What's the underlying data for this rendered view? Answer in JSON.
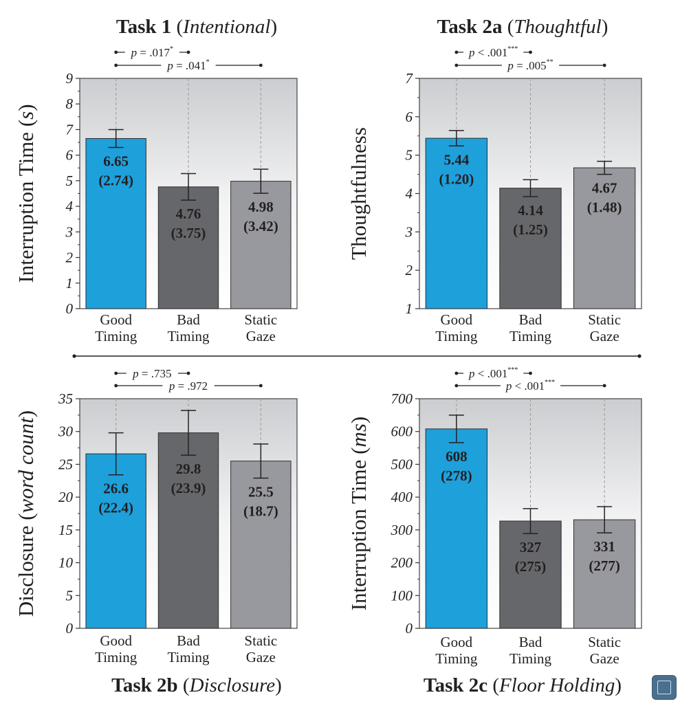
{
  "colors": {
    "good_timing": "#1ea0db",
    "bad_timing": "#66676b",
    "static_gaze": "#98999e",
    "text": "#231f20"
  },
  "icons": {
    "fullscreen": "fullscreen-icon"
  },
  "chart_data": [
    {
      "type": "bar",
      "title": "Task 1",
      "title_italic": "Intentional",
      "ylabel": "Interruption Time",
      "ylabel_italic": "s",
      "ylim": [
        0,
        9
      ],
      "yticks": [
        "0",
        "1",
        "2",
        "3",
        "4",
        "5",
        "6",
        "7",
        "8",
        "9"
      ],
      "categories": [
        [
          "Good",
          "Timing"
        ],
        [
          "Bad",
          "Timing"
        ],
        [
          "Static",
          "Gaze"
        ]
      ],
      "values": [
        6.65,
        4.76,
        4.98
      ],
      "err": [
        0.35,
        0.52,
        0.47
      ],
      "value_labels": [
        "6.65",
        "4.76",
        "4.98"
      ],
      "sd_labels": [
        "(2.74)",
        "(3.75)",
        "(3.42)"
      ],
      "sig": [
        {
          "text": "p = .017",
          "stars": "*",
          "from": 0,
          "to": 1
        },
        {
          "text": "p = .041",
          "stars": "*",
          "from": 0,
          "to": 2
        }
      ]
    },
    {
      "type": "bar",
      "title": "Task 2a",
      "title_italic": "Thoughtful",
      "ylabel": "Thoughtfulness",
      "ylabel_italic": "",
      "ylim": [
        1,
        7
      ],
      "yticks": [
        "1",
        "2",
        "3",
        "4",
        "5",
        "6",
        "7"
      ],
      "categories": [
        [
          "Good",
          "Timing"
        ],
        [
          "Bad",
          "Timing"
        ],
        [
          "Static",
          "Gaze"
        ]
      ],
      "values": [
        5.44,
        4.14,
        4.67
      ],
      "err": [
        0.2,
        0.22,
        0.17
      ],
      "value_labels": [
        "5.44",
        "4.14",
        "4.67"
      ],
      "sd_labels": [
        "(1.20)",
        "(1.25)",
        "(1.48)"
      ],
      "sig": [
        {
          "text": "p < .001",
          "stars": "***",
          "from": 0,
          "to": 1
        },
        {
          "text": "p = .005",
          "stars": "**",
          "from": 0,
          "to": 2
        }
      ]
    },
    {
      "type": "bar",
      "title": "Task 2b",
      "title_italic": "Disclosure",
      "ylabel": "Disclosure",
      "ylabel_italic": "word count",
      "ylim": [
        0,
        35
      ],
      "yticks": [
        "0",
        "5",
        "10",
        "15",
        "20",
        "25",
        "30",
        "35"
      ],
      "categories": [
        [
          "Good",
          "Timing"
        ],
        [
          "Bad",
          "Timing"
        ],
        [
          "Static",
          "Gaze"
        ]
      ],
      "values": [
        26.6,
        29.8,
        25.5
      ],
      "err": [
        3.2,
        3.4,
        2.6
      ],
      "value_labels": [
        "26.6",
        "29.8",
        "25.5"
      ],
      "sd_labels": [
        "(22.4)",
        "(23.9)",
        "(18.7)"
      ],
      "sig": [
        {
          "text": "p = .735",
          "stars": "",
          "from": 0,
          "to": 1
        },
        {
          "text": "p = .972",
          "stars": "",
          "from": 0,
          "to": 2
        }
      ]
    },
    {
      "type": "bar",
      "title": "Task 2c",
      "title_italic": "Floor Holding",
      "ylabel": "Interruption Time",
      "ylabel_italic": "ms",
      "ylim": [
        0,
        700
      ],
      "yticks": [
        "0",
        "100",
        "200",
        "300",
        "400",
        "500",
        "600",
        "700"
      ],
      "categories": [
        [
          "Good",
          "Timing"
        ],
        [
          "Bad",
          "Timing"
        ],
        [
          "Static",
          "Gaze"
        ]
      ],
      "values": [
        608,
        327,
        331
      ],
      "err": [
        42,
        38,
        40
      ],
      "value_labels": [
        "608",
        "327",
        "331"
      ],
      "sd_labels": [
        "(278)",
        "(275)",
        "(277)"
      ],
      "sig": [
        {
          "text": "p < .001",
          "stars": "***",
          "from": 0,
          "to": 1
        },
        {
          "text": "p < .001",
          "stars": "***",
          "from": 0,
          "to": 2
        }
      ]
    }
  ]
}
